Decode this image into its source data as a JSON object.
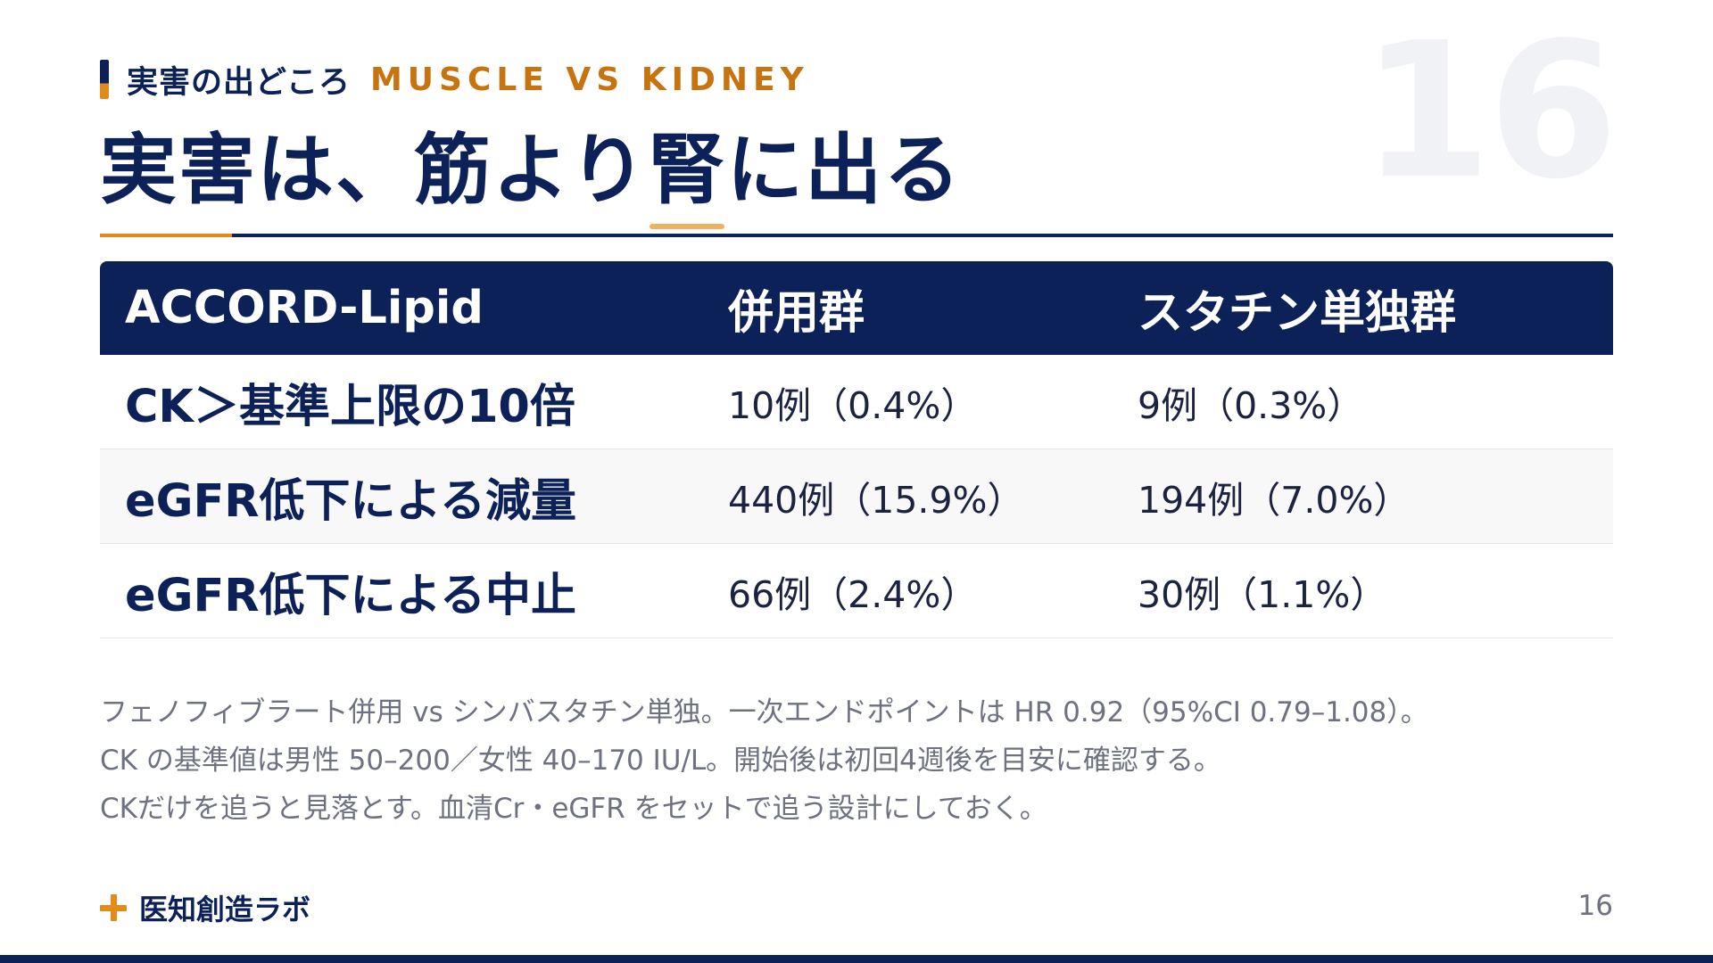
{
  "slide": {
    "number": "16",
    "eyebrow_jp": "実害の出どころ",
    "eyebrow_en": "MUSCLE VS KIDNEY",
    "title_pre": "実害は、筋より",
    "title_highlight": "腎",
    "title_post": "に出る"
  },
  "table": {
    "headers": [
      "ACCORD-Lipid",
      "併用群",
      "スタチン単独群"
    ],
    "rows": [
      {
        "label": "CK＞基準上限の10倍",
        "combo": "10例（0.4%）",
        "statin": "9例（0.3%）"
      },
      {
        "label": "eGFR低下による減量",
        "combo": "440例（15.9%）",
        "statin": "194例（7.0%）"
      },
      {
        "label": "eGFR低下による中止",
        "combo": "66例（2.4%）",
        "statin": "30例（1.1%）"
      }
    ]
  },
  "notes": [
    "フェノフィブラート併用 vs シンバスタチン単独。一次エンドポイントは HR 0.92（95%CI 0.79–1.08）。",
    "CK の基準値は男性 50–200／女性 40–170 IU/L。開始後は初回4週後を目安に確認する。",
    "CKだけを追うと見落とす。血清Cr・eGFR をセットで追う設計にしておく。"
  ],
  "footer": {
    "brand": "医知創造ラボ",
    "brand_icon": "plus-icon",
    "page": "16"
  },
  "colors": {
    "navy": "#0d2159",
    "accent_orange": "#e28a1b",
    "eyebrow_orange": "#c7730f",
    "highlight_underline": "#f0b05e",
    "muted_text": "#6d7180",
    "watermark_number": "#f1f2f5"
  }
}
